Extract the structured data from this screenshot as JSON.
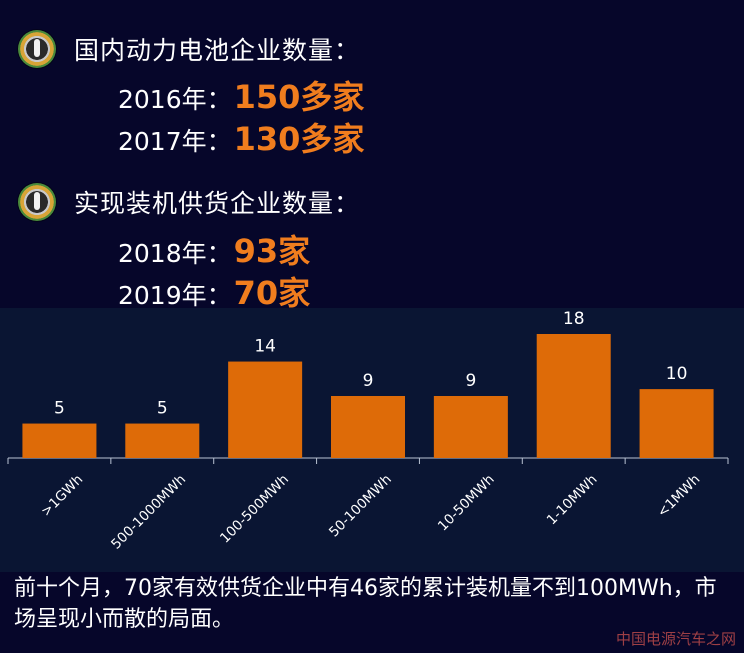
{
  "section1": {
    "icon": "bullet-badge-icon",
    "title": "国内动力电池企业数量：",
    "rows": [
      {
        "label": "2016年：",
        "value": "150多家"
      },
      {
        "label": "2017年：",
        "value": "130多家"
      }
    ]
  },
  "section2": {
    "icon": "bullet-badge-icon",
    "title": "实现装机供货企业数量：",
    "rows": [
      {
        "label": "2018年：",
        "value": "93家"
      },
      {
        "label": "2019年：",
        "value": "70家"
      }
    ]
  },
  "colors": {
    "accent": "#f07d1e",
    "bar": "#de6b08",
    "background": "#06062a",
    "chart_panel": "#0a1533"
  },
  "chart_data": {
    "type": "bar",
    "categories": [
      ">1GWh",
      "500-1000MWh",
      "100-500MWh",
      "50-100MWh",
      "10-50MWh",
      "1-10MWh",
      "<1MWh"
    ],
    "values": [
      5,
      5,
      14,
      9,
      9,
      18,
      10
    ],
    "title": "",
    "xlabel": "",
    "ylabel": "",
    "ylim": [
      0,
      18
    ],
    "grid": false,
    "legend": "none"
  },
  "summary": "前十个月，70家有效供货企业中有46家的累计装机量不到100MWh，市场呈现小而散的局面。",
  "watermark": "中国电源汽车之网"
}
